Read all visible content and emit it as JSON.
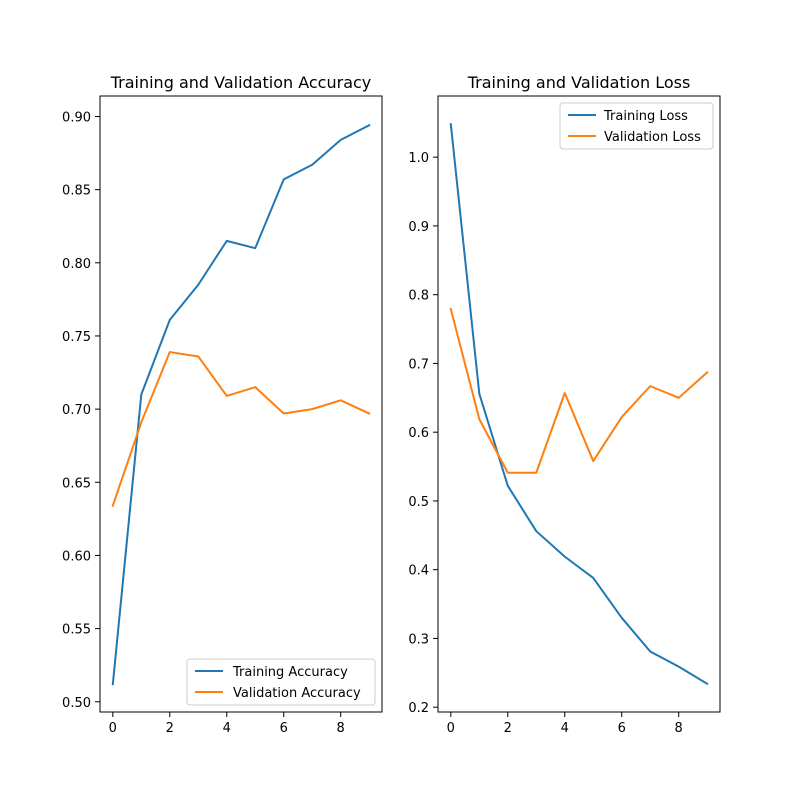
{
  "chart_data": [
    {
      "type": "line",
      "title": "Training and Validation Accuracy",
      "xlabel": "",
      "ylabel": "",
      "xlim": [
        -0.45,
        9.45
      ],
      "ylim": [
        0.493,
        0.914
      ],
      "xticks": [
        0,
        2,
        4,
        6,
        8
      ],
      "xtick_labels": [
        "0",
        "2",
        "4",
        "6",
        "8"
      ],
      "yticks": [
        0.5,
        0.55,
        0.6,
        0.65,
        0.7,
        0.75,
        0.8,
        0.85,
        0.9
      ],
      "ytick_labels": [
        "0.50",
        "0.55",
        "0.60",
        "0.65",
        "0.70",
        "0.75",
        "0.80",
        "0.85",
        "0.90"
      ],
      "grid": false,
      "legend_position": "bottom-right",
      "x": [
        0,
        1,
        2,
        3,
        4,
        5,
        6,
        7,
        8,
        9
      ],
      "series": [
        {
          "name": "Training Accuracy",
          "color": "#1f77b4",
          "values": [
            0.512,
            0.71,
            0.761,
            0.785,
            0.815,
            0.81,
            0.857,
            0.867,
            0.884,
            0.894
          ]
        },
        {
          "name": "Validation Accuracy",
          "color": "#ff7f0e",
          "values": [
            0.634,
            0.691,
            0.739,
            0.736,
            0.709,
            0.715,
            0.697,
            0.7,
            0.706,
            0.697
          ]
        }
      ]
    },
    {
      "type": "line",
      "title": "Training and Validation Loss",
      "xlabel": "",
      "ylabel": "",
      "xlim": [
        -0.45,
        9.45
      ],
      "ylim": [
        0.193,
        1.089
      ],
      "xticks": [
        0,
        2,
        4,
        6,
        8
      ],
      "xtick_labels": [
        "0",
        "2",
        "4",
        "6",
        "8"
      ],
      "yticks": [
        0.2,
        0.3,
        0.4,
        0.5,
        0.6,
        0.7,
        0.8,
        0.9,
        1.0
      ],
      "ytick_labels": [
        "0.2",
        "0.3",
        "0.4",
        "0.5",
        "0.6",
        "0.7",
        "0.8",
        "0.9",
        "1.0"
      ],
      "grid": false,
      "legend_position": "top-right",
      "x": [
        0,
        1,
        2,
        3,
        4,
        5,
        6,
        7,
        8,
        9
      ],
      "series": [
        {
          "name": "Training Loss",
          "color": "#1f77b4",
          "values": [
            1.048,
            0.656,
            0.522,
            0.456,
            0.419,
            0.388,
            0.33,
            0.281,
            0.259,
            0.234
          ]
        },
        {
          "name": "Validation Loss",
          "color": "#ff7f0e",
          "values": [
            0.779,
            0.619,
            0.541,
            0.541,
            0.657,
            0.558,
            0.622,
            0.667,
            0.65,
            0.687
          ]
        }
      ]
    }
  ]
}
